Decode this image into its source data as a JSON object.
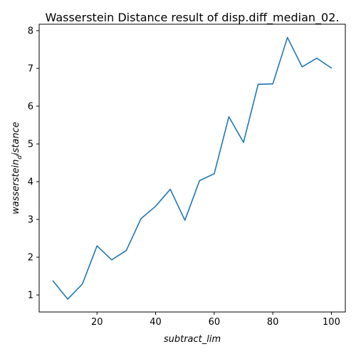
{
  "chart_data": {
    "type": "line",
    "title": "Wasserstein Distance result of disp.diff_median_02.",
    "xlabel": "subtract_lim",
    "ylabel": {
      "main": "wasserstein",
      "sub": "d",
      "tail": "istance"
    },
    "xlim": [
      0.25,
      104.75
    ],
    "ylim": [
      0.55,
      8.17
    ],
    "x_ticks": [
      20,
      40,
      60,
      80,
      100
    ],
    "y_ticks": [
      1,
      2,
      3,
      4,
      5,
      6,
      7,
      8
    ],
    "grid": false,
    "series": [
      {
        "color": "#1f77b4",
        "x": [
          5,
          10,
          15,
          20,
          25,
          30,
          35,
          40,
          45,
          50,
          55,
          60,
          65,
          70,
          75,
          80,
          85,
          90,
          95,
          100
        ],
        "y": [
          1.37,
          0.89,
          1.29,
          2.3,
          1.93,
          2.18,
          3.02,
          3.35,
          3.8,
          2.98,
          4.03,
          4.21,
          5.72,
          5.04,
          6.58,
          6.59,
          7.82,
          7.04,
          7.27,
          7.01
        ]
      }
    ]
  }
}
